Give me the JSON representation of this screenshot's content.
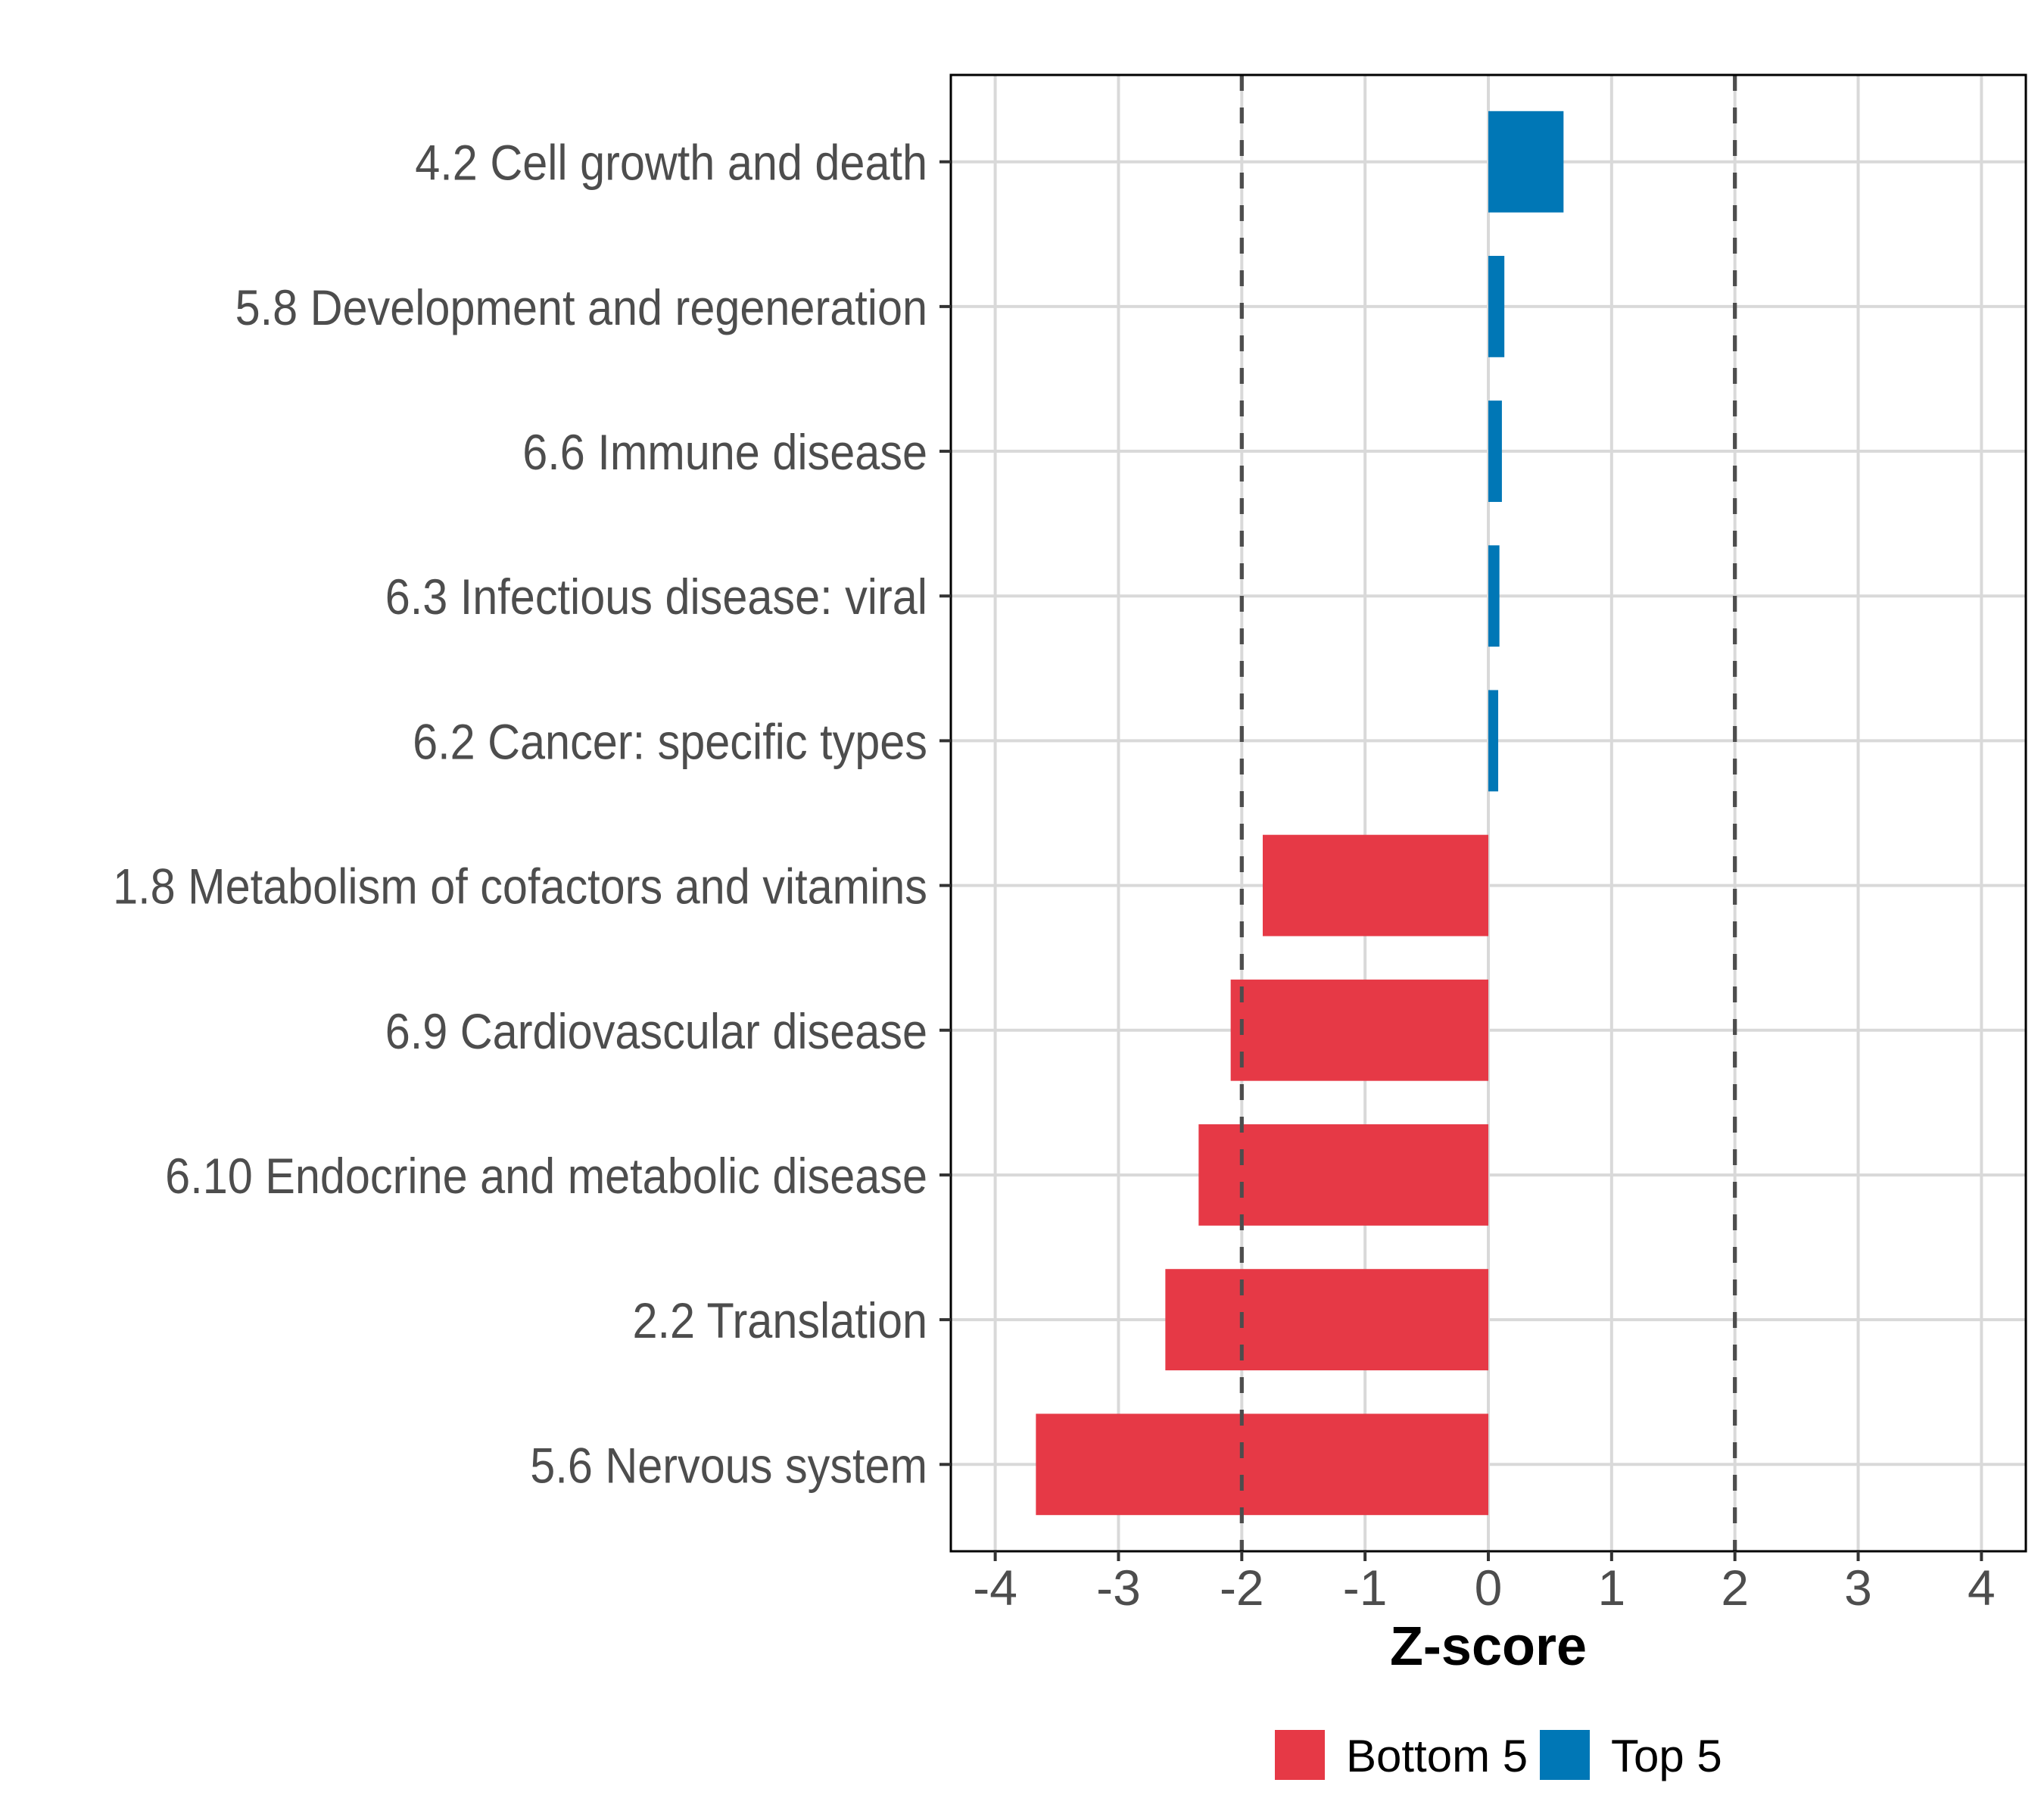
{
  "chart_data": {
    "type": "bar",
    "orientation": "horizontal",
    "title": "",
    "xlabel": "Z-score",
    "ylabel": "",
    "xlim": [
      -4.36,
      4.36
    ],
    "xticks": [
      -4,
      -3,
      -2,
      -1,
      0,
      1,
      2,
      3,
      4
    ],
    "xtick_labels": [
      "-4",
      "-3",
      "-2",
      "-1",
      "0",
      "1",
      "2",
      "3",
      "4"
    ],
    "grid": true,
    "reference_lines": [
      {
        "x": -2,
        "style": "dashed",
        "color": "#4d4d4d"
      },
      {
        "x": 2,
        "style": "dashed",
        "color": "#4d4d4d"
      }
    ],
    "categories": [
      "4.2 Cell growth and death",
      "5.8 Development and regeneration",
      "6.6 Immune disease",
      "6.3 Infectious disease: viral",
      "6.2 Cancer: specific types",
      "1.8 Metabolism of cofactors and vitamins",
      "6.9 Cardiovascular disease",
      "6.10 Endocrine and metabolic disease",
      "2.2 Translation",
      "5.6 Nervous system"
    ],
    "values": [
      0.61,
      0.13,
      0.11,
      0.09,
      0.08,
      -1.83,
      -2.09,
      -2.35,
      -2.62,
      -3.67
    ],
    "groups": [
      "Top 5",
      "Top 5",
      "Top 5",
      "Top 5",
      "Top 5",
      "Bottom 5",
      "Bottom 5",
      "Bottom 5",
      "Bottom 5",
      "Bottom 5"
    ],
    "series": [
      {
        "name": "Bottom 5",
        "color": "#E63946"
      },
      {
        "name": "Top 5",
        "color": "#0077B6"
      }
    ],
    "legend": {
      "position": "bottom",
      "entries": [
        {
          "label": "Bottom 5",
          "color": "#E63946"
        },
        {
          "label": "Top 5",
          "color": "#0077B6"
        }
      ]
    }
  }
}
